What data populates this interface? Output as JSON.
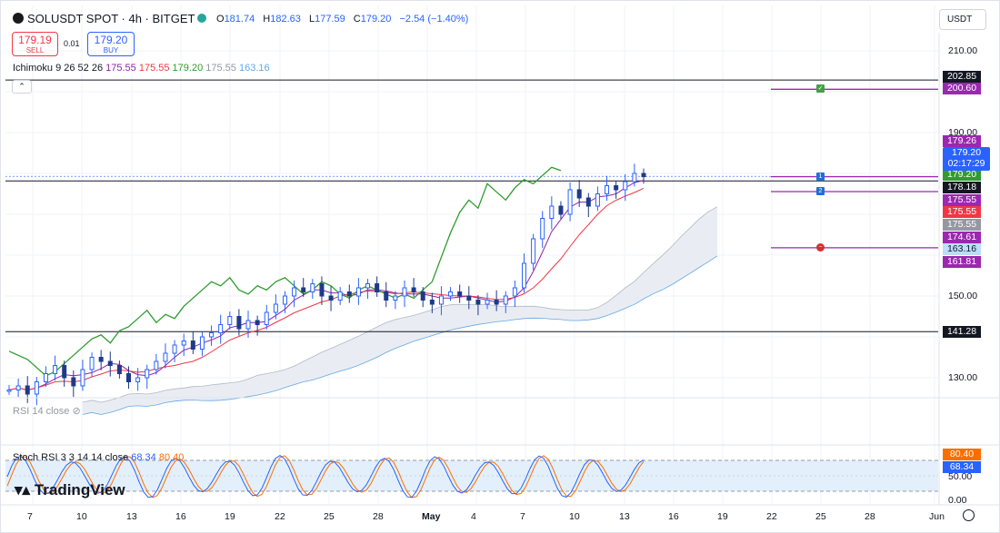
{
  "header": {
    "symbol_title": "SOLUSDT SPOT · 4h · BITGET",
    "ohlc": {
      "o_label": "O",
      "o": "181.74",
      "h_label": "H",
      "h": "182.63",
      "l_label": "L",
      "l": "177.59",
      "c_label": "C",
      "c": "179.20",
      "change": "−2.54 (−1.40%)"
    },
    "sell": {
      "price": "179.19",
      "label": "SELL"
    },
    "spread": "0.01",
    "buy": {
      "price": "179.20",
      "label": "BUY"
    },
    "ichimoku_label": "Ichimoku 9 26 52 26",
    "ichimoku_values": [
      {
        "v": "175.55",
        "color": "#8e24aa"
      },
      {
        "v": "175.55",
        "color": "#f23645"
      },
      {
        "v": "179.20",
        "color": "#2e9c2e"
      },
      {
        "v": "175.55",
        "color": "#9598a1"
      },
      {
        "v": "163.16",
        "color": "#64a7e6"
      }
    ],
    "currency": "USDT"
  },
  "indicators": {
    "rsi_label": "RSI 14 close",
    "stoch_label": "Stoch RSI 3 3 14 14 close",
    "stoch_k": "68.34",
    "stoch_d": "80.40",
    "stoch_k_color": "#2962ff",
    "stoch_d_color": "#ff6d00"
  },
  "branding": {
    "logo_text": "TradingView"
  },
  "price_axis": {
    "labels": [
      "210.00",
      "190.00",
      "150.00",
      "130.00"
    ],
    "stoch_labels": [
      "50.00",
      "0.00"
    ]
  },
  "price_tags": [
    {
      "text": "202.85",
      "bg": "#131722"
    },
    {
      "text": "200.60",
      "bg": "#9c27b0"
    },
    {
      "text": "179.26",
      "bg": "#9c27b0"
    },
    {
      "text": "179.20",
      "bg": "#2e9c2e"
    },
    {
      "text": "178.18",
      "bg": "#131722"
    },
    {
      "text": "175.55",
      "bg": "#9c27b0"
    },
    {
      "text": "175.55",
      "bg": "#f23645"
    },
    {
      "text": "175.55",
      "bg": "#9598a1"
    },
    {
      "text": "174.61",
      "bg": "#9c27b0"
    },
    {
      "text": "163.16",
      "bg": "#bbdefb"
    },
    {
      "text": "161.81",
      "bg": "#9c27b0"
    },
    {
      "text": "141.28",
      "bg": "#131722"
    }
  ],
  "current_price_box": {
    "price": "179.20",
    "countdown": "02:17:29"
  },
  "stoch_tags": [
    {
      "text": "80.40",
      "bg": "#ff6d00"
    },
    {
      "text": "68.34",
      "bg": "#2962ff"
    }
  ],
  "time_axis": [
    "7",
    "10",
    "13",
    "16",
    "19",
    "22",
    "25",
    "28",
    "May",
    "4",
    "7",
    "10",
    "13",
    "16",
    "19",
    "22",
    "25",
    "28",
    "Jun"
  ],
  "order_markers": [
    {
      "symbol": "✓",
      "bg": "#43a047"
    },
    {
      "symbol": "1",
      "bg": "#1e6fd9"
    },
    {
      "symbol": "2",
      "bg": "#1e6fd9"
    },
    {
      "symbol": "−",
      "bg": "#d32f2f"
    }
  ],
  "chart_data": {
    "type": "line",
    "instrument": "SOLUSDT SPOT",
    "timeframe": "4h",
    "y_range": [
      124,
      215
    ],
    "horizontal_lines": [
      202.85,
      178.18,
      141.28
    ],
    "order_lines": [
      200.6,
      179.2,
      175.55,
      161.81
    ],
    "last_price": 179.2,
    "close_series": [
      127,
      128,
      126,
      129,
      131,
      133,
      130,
      128,
      132,
      135,
      134,
      133,
      131,
      129,
      130,
      132,
      134,
      136,
      138,
      139,
      137,
      140,
      141,
      143,
      145,
      142,
      144,
      143,
      146,
      148,
      150,
      152,
      151,
      153,
      150,
      149,
      151,
      150,
      152,
      153,
      151,
      149,
      150,
      152,
      151,
      149,
      148,
      150,
      151,
      150,
      149,
      148,
      149,
      148,
      150,
      152,
      158,
      164,
      169,
      172,
      170,
      176,
      174,
      172,
      175,
      177,
      176,
      178,
      180,
      179.2
    ]
  }
}
